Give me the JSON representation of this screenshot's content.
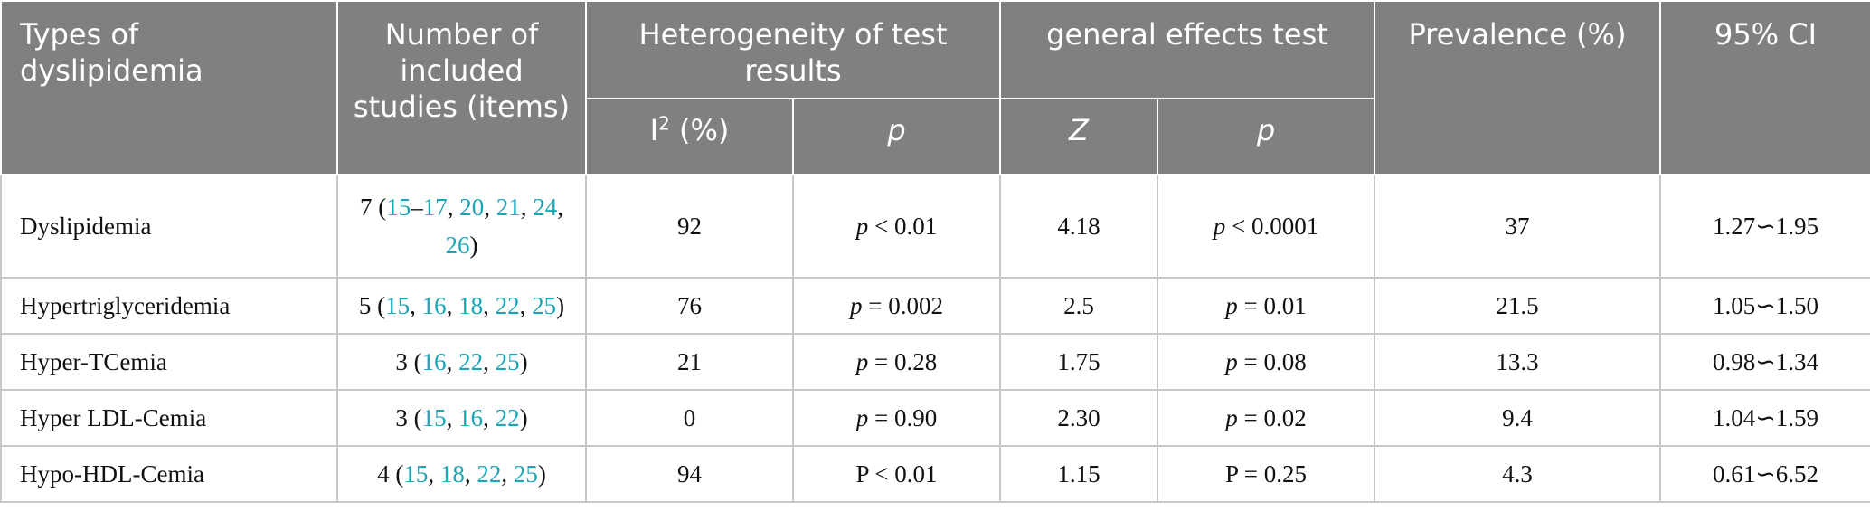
{
  "header": {
    "types": "Types of dyslipidemia",
    "number": "Number of included studies (items)",
    "heterogeneity": "Heterogeneity of test results",
    "general": "general effects test",
    "prevalence": "Prevalence (%)",
    "ci": "95% CI",
    "i2_base": "I",
    "i2_sup": "2",
    "i2_tail": " (%)",
    "p1": "p",
    "z": "Z",
    "p2": "p"
  },
  "rows": [
    {
      "type": "Dyslipidemia",
      "count": "7 (",
      "refs": [
        "15",
        "–",
        "17",
        ", ",
        "20",
        ", ",
        "21",
        ", ",
        "24",
        ", ",
        "26"
      ],
      "close": ")",
      "i2": "92",
      "p_het_prefix": "p",
      "p_het": " < 0.01",
      "z": "4.18",
      "p_gen_prefix": "p",
      "p_gen": " < 0.0001",
      "prevalence": "37",
      "ci": "1.27∽1.95"
    },
    {
      "type": "Hypertriglyceridemia",
      "count": "5 (",
      "refs": [
        "15",
        ", ",
        "16",
        ", ",
        "18",
        ", ",
        "22",
        ", ",
        "25"
      ],
      "close": ")",
      "i2": "76",
      "p_het_prefix": "p",
      "p_het": " = 0.002",
      "z": "2.5",
      "p_gen_prefix": "p",
      "p_gen": " = 0.01",
      "prevalence": "21.5",
      "ci": "1.05∽1.50"
    },
    {
      "type": "Hyper-TCemia",
      "count": "3 (",
      "refs": [
        "16",
        ", ",
        "22",
        ", ",
        "25"
      ],
      "close": ")",
      "i2": "21",
      "p_het_prefix": "p",
      "p_het": " = 0.28",
      "z": "1.75",
      "p_gen_prefix": "p",
      "p_gen": " = 0.08",
      "prevalence": "13.3",
      "ci": "0.98∽1.34"
    },
    {
      "type": "Hyper LDL-Cemia",
      "count": "3 (",
      "refs": [
        "15",
        ", ",
        "16",
        ", ",
        "22"
      ],
      "close": ")",
      "i2": "0",
      "p_het_prefix": "p",
      "p_het": " = 0.90",
      "z": "2.30",
      "p_gen_prefix": "p",
      "p_gen": " = 0.02",
      "prevalence": "9.4",
      "ci": "1.04∽1.59"
    },
    {
      "type": "Hypo-HDL-Cemia",
      "count": "4 (",
      "refs": [
        "15",
        ", ",
        "18",
        ", ",
        "22",
        ", ",
        "25"
      ],
      "close": ")",
      "i2": "94",
      "p_het_prefix": "P",
      "p_het": " < 0.01",
      "z": "1.15",
      "p_gen_prefix": "P",
      "p_gen": " = 0.25",
      "prevalence": "4.3",
      "ci": "0.61∽6.52"
    }
  ],
  "colors": {
    "header_bg": "#808080",
    "link": "#1aa6b7",
    "grid": "#c8c8c8"
  }
}
